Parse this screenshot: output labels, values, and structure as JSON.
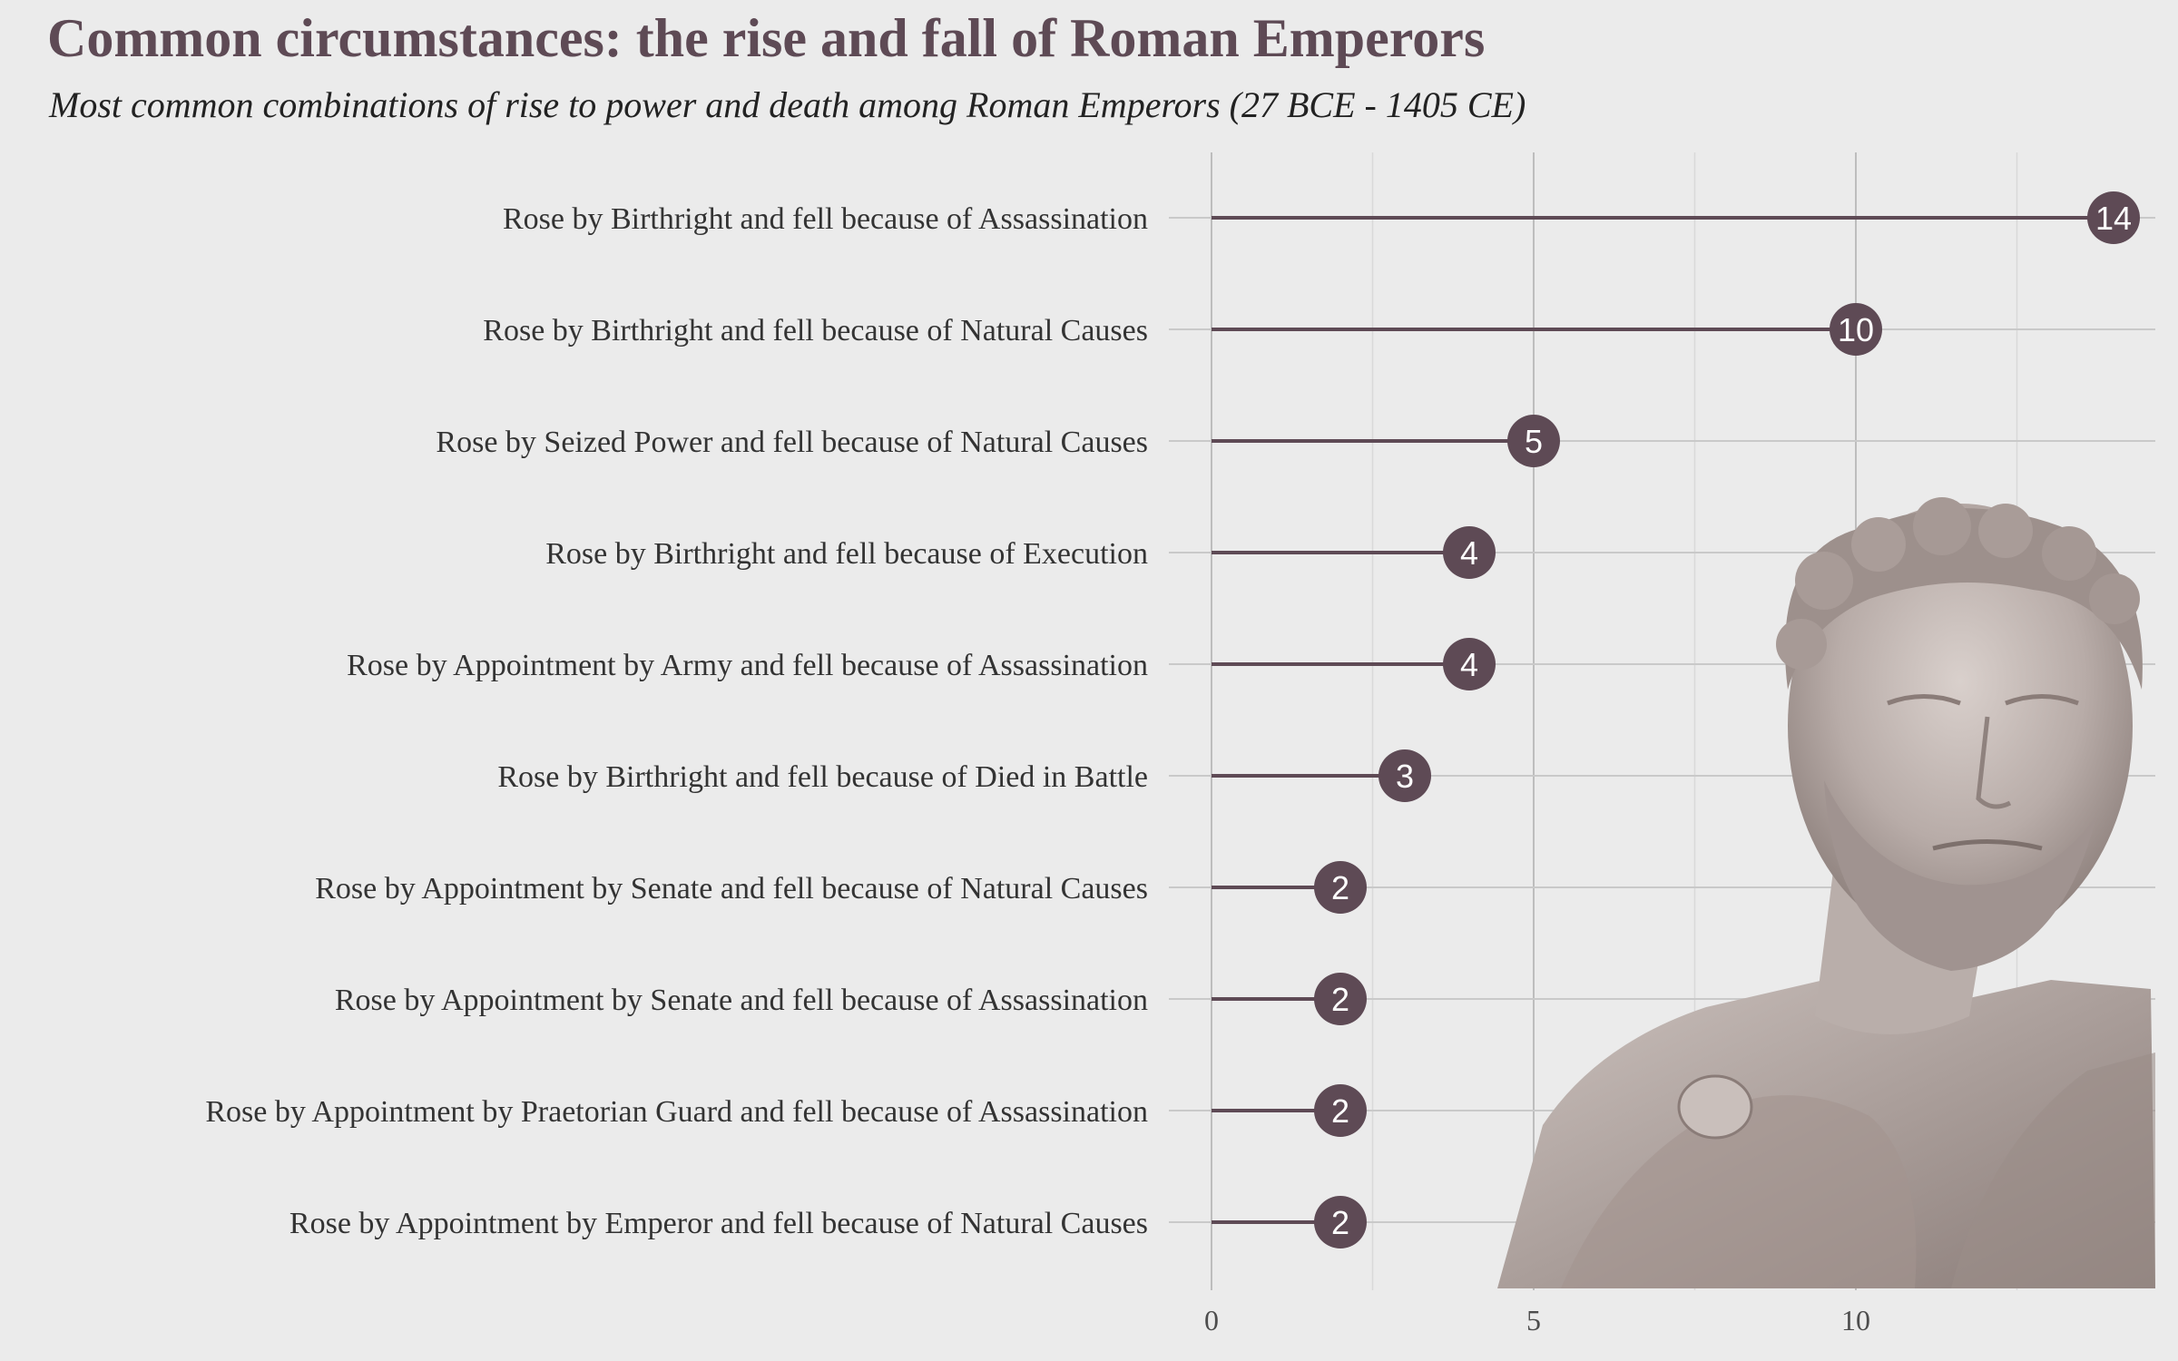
{
  "chart_data": {
    "type": "bar",
    "title": "Common circumstances: the rise and fall of Roman Emperors",
    "subtitle": "Most common combinations of rise to power and death among Roman Emperors (27 BCE - 1405 CE)",
    "xlabel": "",
    "ylabel": "",
    "orientation": "horizontal",
    "style": "lollipop",
    "categories": [
      "Rose by Birthright and fell because of Assassination",
      "Rose by Birthright and fell because of Natural Causes",
      "Rose by Seized Power and fell because of Natural Causes",
      "Rose by Birthright and fell because of Execution",
      "Rose by Appointment by Army and fell because of Assassination",
      "Rose by Birthright and fell because of Died in Battle",
      "Rose by Appointment by Senate and fell because of Natural Causes",
      "Rose by Appointment by Senate and fell because of Assassination",
      "Rose by Appointment by Praetorian Guard and fell because of Assassination",
      "Rose by Appointment by Emperor and fell because of Natural Causes"
    ],
    "values": [
      14,
      10,
      5,
      4,
      4,
      3,
      2,
      2,
      2,
      2
    ],
    "xlim": [
      0,
      14.6
    ],
    "xticks": [
      0,
      5,
      10
    ],
    "grid": true,
    "colors": {
      "background": "#ebebeb",
      "lollipop": "#5e4a55",
      "title": "#5e4a55",
      "grid": "#cfcfcf"
    }
  }
}
